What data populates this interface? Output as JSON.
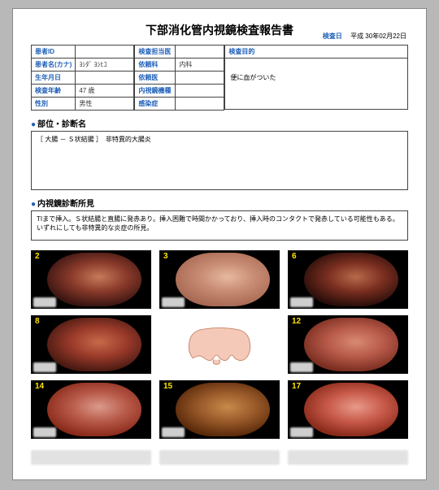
{
  "title": "下部消化管内視鏡検査報告書",
  "exam_date": {
    "label": "検査日",
    "value": "平成 30年02月22日"
  },
  "patient": {
    "rows": [
      {
        "label": "患者ID",
        "value": ""
      },
      {
        "label": "患者名(カナ)",
        "value": "ﾖｼﾀﾞ ﾖｼﾋｺ"
      },
      {
        "label": "生年月日",
        "value": ""
      },
      {
        "label": "検査年齢",
        "value": "47 歳"
      },
      {
        "label": "性別",
        "value": "男性"
      }
    ]
  },
  "request": {
    "rows": [
      {
        "label": "検査担当医",
        "value": ""
      },
      {
        "label": "依頼科",
        "value": "内科"
      },
      {
        "label": "依頼医",
        "value": ""
      },
      {
        "label": "内視鏡機種",
        "value": ""
      },
      {
        "label": "感染症",
        "value": ""
      }
    ]
  },
  "purpose": {
    "head": "検査目的",
    "body": "便に血がついた"
  },
  "diagnosis": {
    "head": "部位・診断名",
    "body": "［ 大腸 － Ｓ状結腸 ］　非特異的大腸炎"
  },
  "findings": {
    "head": "内視鏡診断所見",
    "body": "TIまで挿入。Ｓ状結腸と直腸に発赤あり。挿入困難で時間かかっており、挿入時のコンタクトで発赤している可能性もある。いずれにしても非特異的な炎症の所見。"
  },
  "images": [
    {
      "num": "2",
      "type": "endo",
      "grad_a": "#8a3a2a",
      "grad_b": "#c67a5a",
      "grad_c": "#3a1512"
    },
    {
      "num": "3",
      "type": "endo",
      "grad_a": "#c78a72",
      "grad_b": "#e6b9a0",
      "grad_c": "#a86a54"
    },
    {
      "num": "6",
      "type": "endo",
      "grad_a": "#7a2e20",
      "grad_b": "#b86a4a",
      "grad_c": "#2a0e0a"
    },
    {
      "num": "8",
      "type": "endo",
      "grad_a": "#9a3a2a",
      "grad_b": "#c66a4a",
      "grad_c": "#4a1a12"
    },
    {
      "num": "",
      "type": "diagram"
    },
    {
      "num": "12",
      "type": "endo",
      "grad_a": "#b85a4a",
      "grad_b": "#d88a72",
      "grad_c": "#7a2e20"
    },
    {
      "num": "14",
      "type": "endo",
      "grad_a": "#b85a4a",
      "grad_b": "#da9a8a",
      "grad_c": "#8a2a1a"
    },
    {
      "num": "15",
      "type": "endo",
      "grad_a": "#9a5a2a",
      "grad_b": "#c88a4a",
      "grad_c": "#5a2a0a"
    },
    {
      "num": "17",
      "type": "endo",
      "grad_a": "#c85a4a",
      "grad_b": "#e89a8a",
      "grad_c": "#8a2a1a"
    }
  ],
  "colors": {
    "label": "#2060b8",
    "imgnum": "#ffe400"
  }
}
